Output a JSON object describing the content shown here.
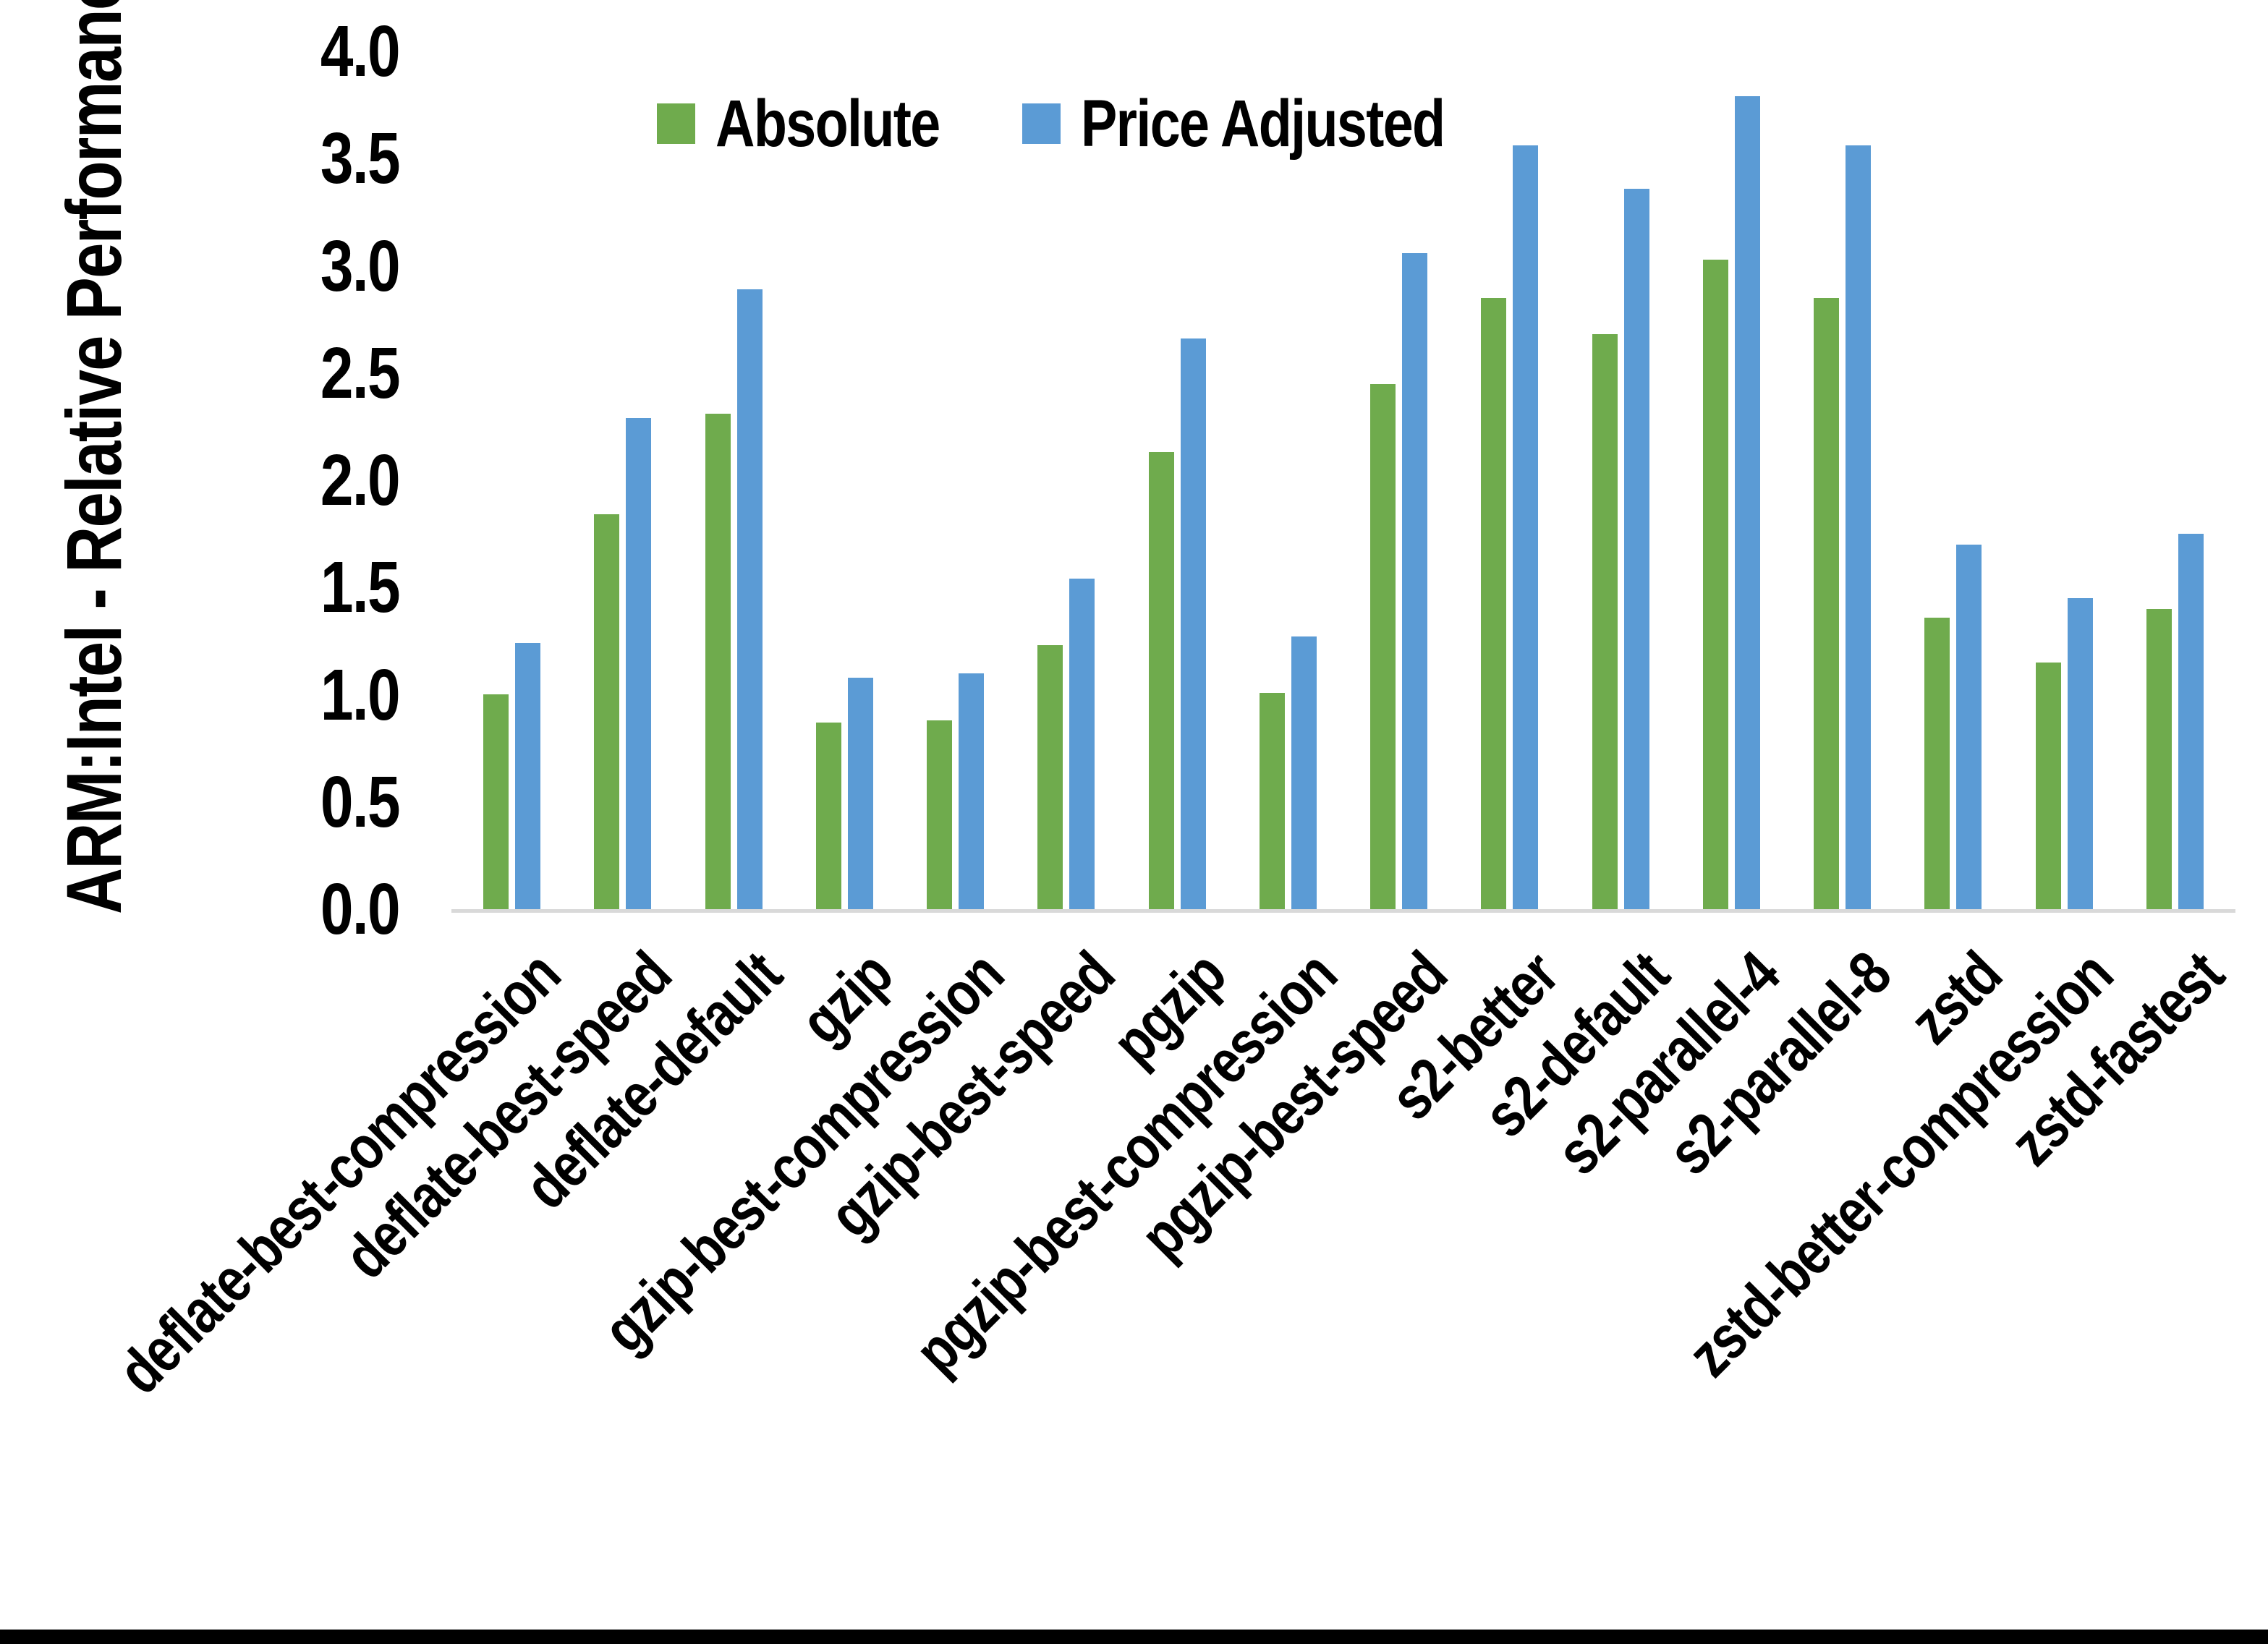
{
  "page": {
    "background": "#ffffff",
    "bottom_edge_bar_color": "#000000",
    "axis_line_color": "#D9D9D9",
    "text_color": "#000000"
  },
  "chart_data": {
    "type": "bar",
    "title": "",
    "xlabel": "",
    "ylabel": "ARM:Intel - Relative Performance",
    "ylim": [
      0.0,
      4.0
    ],
    "ytick_step": 0.5,
    "ytick_labels": [
      "4.0",
      "3.5",
      "3.0",
      "2.5",
      "2.0",
      "1.5",
      "1.0",
      "0.5",
      "0.0"
    ],
    "grid": false,
    "legend_position": "top-center",
    "x_label_rotation_deg": 45,
    "categories": [
      "deflate-best-compression",
      "deflate-best-speed",
      "deflate-default",
      "gzip",
      "gzip-best-compression",
      "gzip-best-speed",
      "pgzip",
      "pgzip-best-compression",
      "pgzip-best-speed",
      "s2-better",
      "s2-default",
      "s2-parallel-4",
      "s2-parallel-8",
      "zstd",
      "zstd-better-compression",
      "zstd-fastest"
    ],
    "series": [
      {
        "name": "Absolute",
        "color": "#6FAB4D",
        "values": [
          1.0,
          1.84,
          2.31,
          0.87,
          0.88,
          1.23,
          2.13,
          1.01,
          2.45,
          2.85,
          2.68,
          3.03,
          2.85,
          1.36,
          1.15,
          1.4
        ]
      },
      {
        "name": "Price Adjusted",
        "color": "#5B9BD5",
        "values": [
          1.24,
          2.29,
          2.89,
          1.08,
          1.1,
          1.54,
          2.66,
          1.27,
          3.06,
          3.56,
          3.36,
          3.79,
          3.56,
          1.7,
          1.45,
          1.75
        ]
      }
    ]
  }
}
